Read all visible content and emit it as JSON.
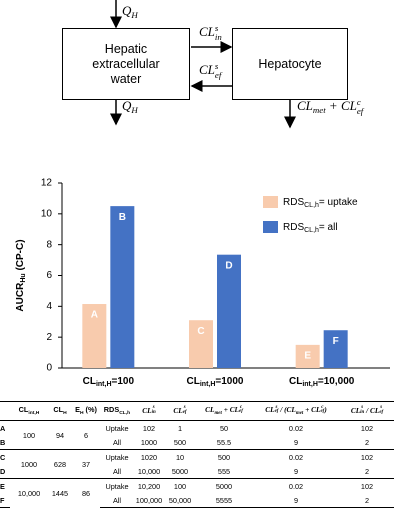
{
  "diagram": {
    "nodes": [
      {
        "label": "Hepatic extracellular water"
      },
      {
        "label": "Hepatocyte"
      }
    ],
    "edges": [
      {
        "label": [
          {
            "t": "Q",
            "sub": "H"
          }
        ]
      },
      {
        "label": [
          {
            "t": "CL",
            "sub": "in",
            "sup": "s"
          }
        ]
      },
      {
        "label": [
          {
            "t": "CL",
            "sub": "ef",
            "sup": "s"
          }
        ]
      },
      {
        "label": [
          {
            "t": "Q",
            "sub": "H"
          }
        ]
      },
      {
        "label": [
          {
            "t": "CL",
            "sub": "met"
          },
          {
            "t": " + "
          },
          {
            "t": "CL",
            "sub": "ef",
            "sup": "c"
          }
        ]
      }
    ]
  },
  "chart_data": {
    "type": "bar",
    "y_label": [
      {
        "t": "AUCR",
        "sub": "Hu"
      },
      {
        "t": " (CP-C)"
      }
    ],
    "categories": [
      [
        {
          "t": "CL",
          "sub": "int,H"
        },
        {
          "t": "=100"
        }
      ],
      [
        {
          "t": "CL",
          "sub": "int,H"
        },
        {
          "t": "=1000"
        }
      ],
      [
        {
          "t": "CL",
          "sub": "int,H"
        },
        {
          "t": "=10,000"
        }
      ]
    ],
    "series": [
      {
        "name": [
          {
            "t": "RDS",
            "sub": "CL,h"
          },
          {
            "t": "= uptake"
          }
        ],
        "color": "#f8cbad",
        "values": [
          4.15,
          3.1,
          1.5
        ],
        "labels": [
          "A",
          "C",
          "E"
        ]
      },
      {
        "name": [
          {
            "t": "RDS",
            "sub": "CL,h"
          },
          {
            "t": "= all"
          }
        ],
        "color": "#4472c4",
        "values": [
          10.5,
          7.35,
          2.45
        ],
        "labels": [
          "B",
          "D",
          "F"
        ]
      }
    ],
    "ylim": [
      0,
      12
    ],
    "yticks": [
      0,
      2,
      4,
      6,
      8,
      10,
      12
    ],
    "grid": false,
    "legend": "top-right"
  },
  "table": {
    "header": [
      [
        {
          "t": "CL",
          "sub": "int,H"
        }
      ],
      [
        {
          "t": "CL",
          "sub": "H"
        }
      ],
      [
        {
          "t": "E",
          "sub": "H"
        },
        {
          "t": " (%)"
        }
      ],
      [
        {
          "t": "RDS",
          "sub": "CL,h"
        }
      ],
      [
        {
          "t": "CL",
          "sub": "in",
          "sup": "s"
        }
      ],
      [
        {
          "t": "CL",
          "sub": "ef",
          "sup": "s"
        }
      ],
      [
        {
          "t": "CL",
          "sub": "met"
        },
        {
          "t": " + "
        },
        {
          "t": "CL",
          "sub": "ef",
          "sup": "c"
        }
      ],
      [
        {
          "t": "CL",
          "sub": "ef",
          "sup": "s"
        },
        {
          "t": " / ("
        },
        {
          "t": "CL",
          "sub": "met"
        },
        {
          "t": " + "
        },
        {
          "t": "CL",
          "sub": "ef",
          "sup": "c"
        },
        {
          "t": ")"
        }
      ],
      [
        {
          "t": "CL",
          "sub": "in",
          "sup": "s"
        },
        {
          "t": " / "
        },
        {
          "t": "CL",
          "sub": "ef",
          "sup": "s"
        }
      ]
    ],
    "groups": [
      {
        "ids": [
          "A",
          "B"
        ],
        "cells": [
          "100",
          "94",
          "6"
        ],
        "rows": [
          [
            "Uptake",
            "102",
            "1",
            "50",
            "0.02",
            "102"
          ],
          [
            "All",
            "1000",
            "500",
            "55.5",
            "9",
            "2"
          ]
        ]
      },
      {
        "ids": [
          "C",
          "D"
        ],
        "cells": [
          "1000",
          "628",
          "37"
        ],
        "rows": [
          [
            "Uptake",
            "1020",
            "10",
            "500",
            "0.02",
            "102"
          ],
          [
            "All",
            "10,000",
            "5000",
            "555",
            "9",
            "2"
          ]
        ]
      },
      {
        "ids": [
          "E",
          "F"
        ],
        "cells": [
          "10,000",
          "1445",
          "86"
        ],
        "rows": [
          [
            "Uptake",
            "10,200",
            "100",
            "5000",
            "0.02",
            "102"
          ],
          [
            "All",
            "100,000",
            "50,000",
            "5555",
            "9",
            "2"
          ]
        ]
      }
    ]
  }
}
